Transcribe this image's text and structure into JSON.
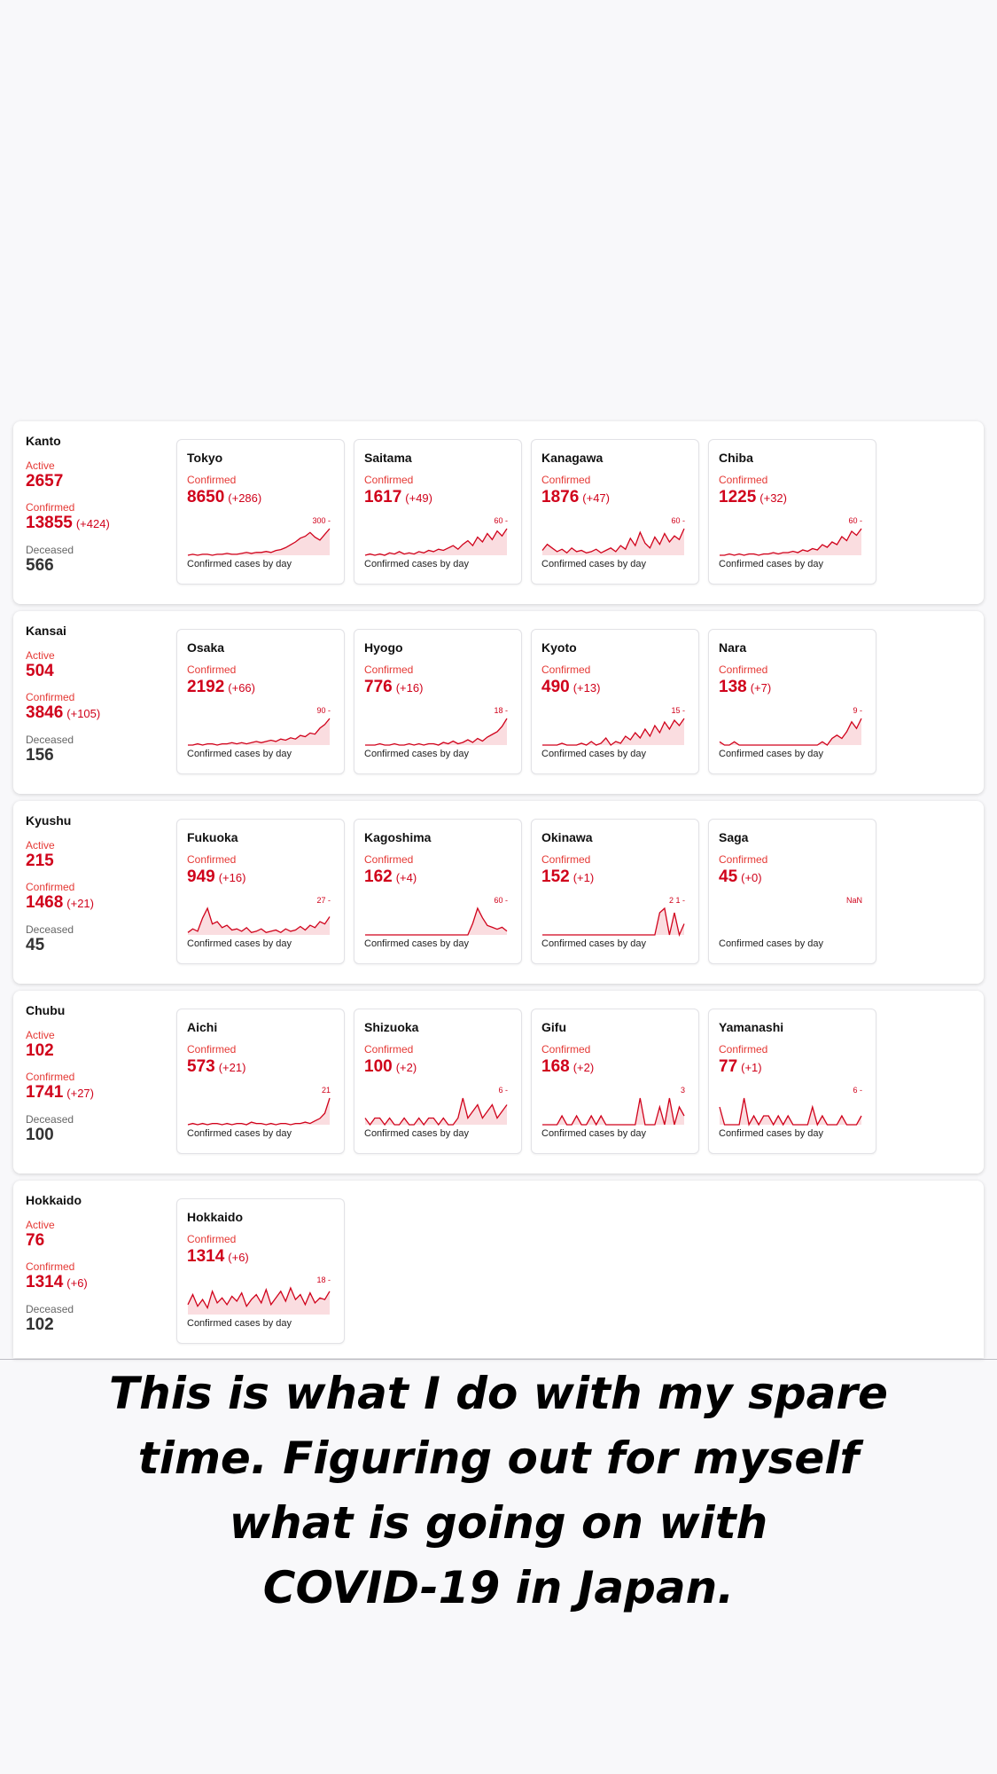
{
  "card_footer": "Confirmed cases by day",
  "colors": {
    "accent": "#d0021b",
    "line": "#d0021b",
    "fill": "#f9d4d8"
  },
  "regions": [
    {
      "name": "Kanto",
      "active_label": "Active",
      "active": "2657",
      "confirmed_label": "Confirmed",
      "confirmed": "13855",
      "confirmed_delta": "(+424)",
      "deceased_label": "Deceased",
      "deceased": "566",
      "prefectures": [
        {
          "name": "Tokyo",
          "label": "Confirmed",
          "value": "8650",
          "delta": "(+286)",
          "peak_label": "300 -",
          "footer": "Confirmed cases by day",
          "series": [
            0,
            1,
            0,
            1,
            1,
            0,
            1,
            1,
            2,
            1,
            1,
            2,
            3,
            2,
            3,
            3,
            4,
            3,
            5,
            6,
            8,
            11,
            14,
            18,
            20,
            24,
            19,
            16,
            22,
            28
          ]
        },
        {
          "name": "Saitama",
          "label": "Confirmed",
          "value": "1617",
          "delta": "(+49)",
          "peak_label": "60 -",
          "footer": "Confirmed cases by day",
          "series": [
            0,
            1,
            0,
            1,
            0,
            2,
            1,
            3,
            1,
            2,
            1,
            3,
            2,
            4,
            3,
            5,
            4,
            6,
            8,
            5,
            9,
            12,
            8,
            15,
            11,
            18,
            13,
            20,
            16,
            22
          ]
        },
        {
          "name": "Kanagawa",
          "label": "Confirmed",
          "value": "1876",
          "delta": "(+47)",
          "peak_label": "60 -",
          "footer": "Confirmed cases by day",
          "series": [
            4,
            9,
            6,
            3,
            5,
            2,
            6,
            3,
            4,
            2,
            3,
            5,
            2,
            4,
            6,
            3,
            8,
            5,
            14,
            8,
            19,
            10,
            6,
            15,
            9,
            18,
            11,
            16,
            13,
            22
          ]
        },
        {
          "name": "Chiba",
          "label": "Confirmed",
          "value": "1225",
          "delta": "(+32)",
          "peak_label": "60 -",
          "footer": "Confirmed cases by day",
          "series": [
            0,
            0,
            1,
            0,
            1,
            0,
            1,
            1,
            0,
            1,
            1,
            2,
            1,
            2,
            2,
            3,
            2,
            4,
            3,
            5,
            4,
            8,
            6,
            10,
            8,
            14,
            11,
            18,
            15,
            20
          ]
        }
      ]
    },
    {
      "name": "Kansai",
      "active_label": "Active",
      "active": "504",
      "confirmed_label": "Confirmed",
      "confirmed": "3846",
      "confirmed_delta": "(+105)",
      "deceased_label": "Deceased",
      "deceased": "156",
      "prefectures": [
        {
          "name": "Osaka",
          "label": "Confirmed",
          "value": "2192",
          "delta": "(+66)",
          "peak_label": "90 -",
          "footer": "Confirmed cases by day",
          "series": [
            0,
            0,
            1,
            0,
            1,
            1,
            0,
            1,
            1,
            2,
            1,
            2,
            1,
            2,
            3,
            2,
            3,
            4,
            3,
            5,
            4,
            6,
            5,
            8,
            7,
            10,
            9,
            14,
            17,
            22
          ]
        },
        {
          "name": "Hyogo",
          "label": "Confirmed",
          "value": "776",
          "delta": "(+16)",
          "peak_label": "18 -",
          "footer": "Confirmed cases by day",
          "series": [
            0,
            0,
            0,
            1,
            0,
            0,
            1,
            0,
            0,
            1,
            0,
            1,
            0,
            1,
            1,
            0,
            2,
            1,
            3,
            1,
            2,
            4,
            2,
            5,
            3,
            6,
            8,
            10,
            14,
            20
          ]
        },
        {
          "name": "Kyoto",
          "label": "Confirmed",
          "value": "490",
          "delta": "(+13)",
          "peak_label": "15 -",
          "footer": "Confirmed cases by day",
          "series": [
            0,
            0,
            0,
            0,
            1,
            0,
            0,
            0,
            1,
            0,
            2,
            0,
            1,
            4,
            0,
            2,
            1,
            5,
            3,
            7,
            4,
            9,
            5,
            11,
            7,
            13,
            9,
            14,
            11,
            15
          ]
        },
        {
          "name": "Nara",
          "label": "Confirmed",
          "value": "138",
          "delta": "(+7)",
          "peak_label": "9 -",
          "footer": "Confirmed cases by day",
          "series": [
            1,
            0,
            0,
            1,
            0,
            0,
            0,
            0,
            0,
            0,
            0,
            0,
            0,
            0,
            0,
            0,
            0,
            0,
            0,
            0,
            0,
            1,
            0,
            2,
            3,
            2,
            4,
            7,
            5,
            8
          ]
        }
      ]
    },
    {
      "name": "Kyushu",
      "active_label": "Active",
      "active": "215",
      "confirmed_label": "Confirmed",
      "confirmed": "1468",
      "confirmed_delta": "(+21)",
      "deceased_label": "Deceased",
      "deceased": "45",
      "prefectures": [
        {
          "name": "Fukuoka",
          "label": "Confirmed",
          "value": "949",
          "delta": "(+16)",
          "peak_label": "27 -",
          "footer": "Confirmed cases by day",
          "series": [
            2,
            5,
            3,
            14,
            22,
            9,
            11,
            6,
            8,
            4,
            5,
            3,
            6,
            2,
            3,
            5,
            2,
            3,
            4,
            2,
            5,
            3,
            4,
            7,
            4,
            8,
            6,
            11,
            9,
            15
          ]
        },
        {
          "name": "Kagoshima",
          "label": "Confirmed",
          "value": "162",
          "delta": "(+4)",
          "peak_label": "60 -",
          "footer": "Confirmed cases by day",
          "series": [
            0,
            0,
            0,
            0,
            0,
            0,
            0,
            0,
            0,
            0,
            0,
            0,
            0,
            0,
            0,
            0,
            0,
            0,
            0,
            0,
            0,
            0,
            6,
            14,
            9,
            5,
            4,
            3,
            4,
            2
          ]
        },
        {
          "name": "Okinawa",
          "label": "Confirmed",
          "value": "152",
          "delta": "(+1)",
          "peak_label": "2 1 -",
          "footer": "Confirmed cases by day",
          "series": [
            0,
            0,
            0,
            0,
            0,
            0,
            0,
            0,
            0,
            0,
            0,
            0,
            0,
            0,
            0,
            0,
            0,
            0,
            0,
            0,
            0,
            0,
            0,
            0,
            20,
            24,
            0,
            20,
            0,
            10
          ]
        },
        {
          "name": "Saga",
          "label": "Confirmed",
          "value": "45",
          "delta": "(+0)",
          "peak_label": "NaN",
          "footer": "Confirmed cases by day",
          "series": []
        }
      ]
    },
    {
      "name": "Chubu",
      "active_label": "Active",
      "active": "102",
      "confirmed_label": "Confirmed",
      "confirmed": "1741",
      "confirmed_delta": "(+27)",
      "deceased_label": "Deceased",
      "deceased": "100",
      "prefectures": [
        {
          "name": "Aichi",
          "label": "Confirmed",
          "value": "573",
          "delta": "(+21)",
          "peak_label": "21",
          "footer": "Confirmed cases by day",
          "series": [
            0,
            1,
            0,
            1,
            0,
            1,
            1,
            0,
            1,
            0,
            1,
            1,
            0,
            2,
            1,
            1,
            0,
            1,
            0,
            1,
            1,
            0,
            1,
            1,
            2,
            1,
            3,
            5,
            9,
            21
          ]
        },
        {
          "name": "Shizuoka",
          "label": "Confirmed",
          "value": "100",
          "delta": "(+2)",
          "peak_label": "6 -",
          "footer": "Confirmed cases by day",
          "series": [
            1,
            0,
            1,
            1,
            0,
            1,
            0,
            0,
            1,
            0,
            0,
            1,
            0,
            1,
            1,
            0,
            1,
            0,
            0,
            1,
            4,
            1,
            2,
            3,
            1,
            2,
            3,
            1,
            2,
            3
          ]
        },
        {
          "name": "Gifu",
          "label": "Confirmed",
          "value": "168",
          "delta": "(+2)",
          "peak_label": "3",
          "footer": "Confirmed cases by day",
          "series": [
            0,
            0,
            0,
            0,
            1,
            0,
            0,
            1,
            0,
            0,
            1,
            0,
            1,
            0,
            0,
            0,
            0,
            0,
            0,
            0,
            3,
            0,
            0,
            0,
            2,
            0,
            3,
            0,
            2,
            1
          ]
        },
        {
          "name": "Yamanashi",
          "label": "Confirmed",
          "value": "77",
          "delta": "(+1)",
          "peak_label": "6 -",
          "footer": "Confirmed cases by day",
          "series": [
            2,
            0,
            0,
            0,
            0,
            3,
            0,
            1,
            0,
            1,
            1,
            0,
            1,
            0,
            1,
            0,
            0,
            0,
            0,
            2,
            0,
            1,
            0,
            0,
            0,
            1,
            0,
            0,
            0,
            1
          ]
        }
      ]
    },
    {
      "name": "Hokkaido",
      "active_label": "Active",
      "active": "76",
      "confirmed_label": "Confirmed",
      "confirmed": "1314",
      "confirmed_delta": "(+6)",
      "deceased_label": "Deceased",
      "deceased": "102",
      "prefectures": [
        {
          "name": "Hokkaido",
          "label": "Confirmed",
          "value": "1314",
          "delta": "(+6)",
          "peak_label": "18 -",
          "footer": "Confirmed cases by day",
          "series": [
            6,
            12,
            5,
            9,
            4,
            14,
            7,
            10,
            6,
            11,
            8,
            13,
            5,
            9,
            12,
            7,
            15,
            6,
            10,
            14,
            8,
            16,
            9,
            12,
            6,
            13,
            7,
            10,
            9,
            14
          ]
        }
      ]
    }
  ],
  "caption_lines": [
    "This is what I do with my spare",
    "time. Figuring out for myself",
    "what is going on with",
    "COVID-19 in Japan."
  ]
}
